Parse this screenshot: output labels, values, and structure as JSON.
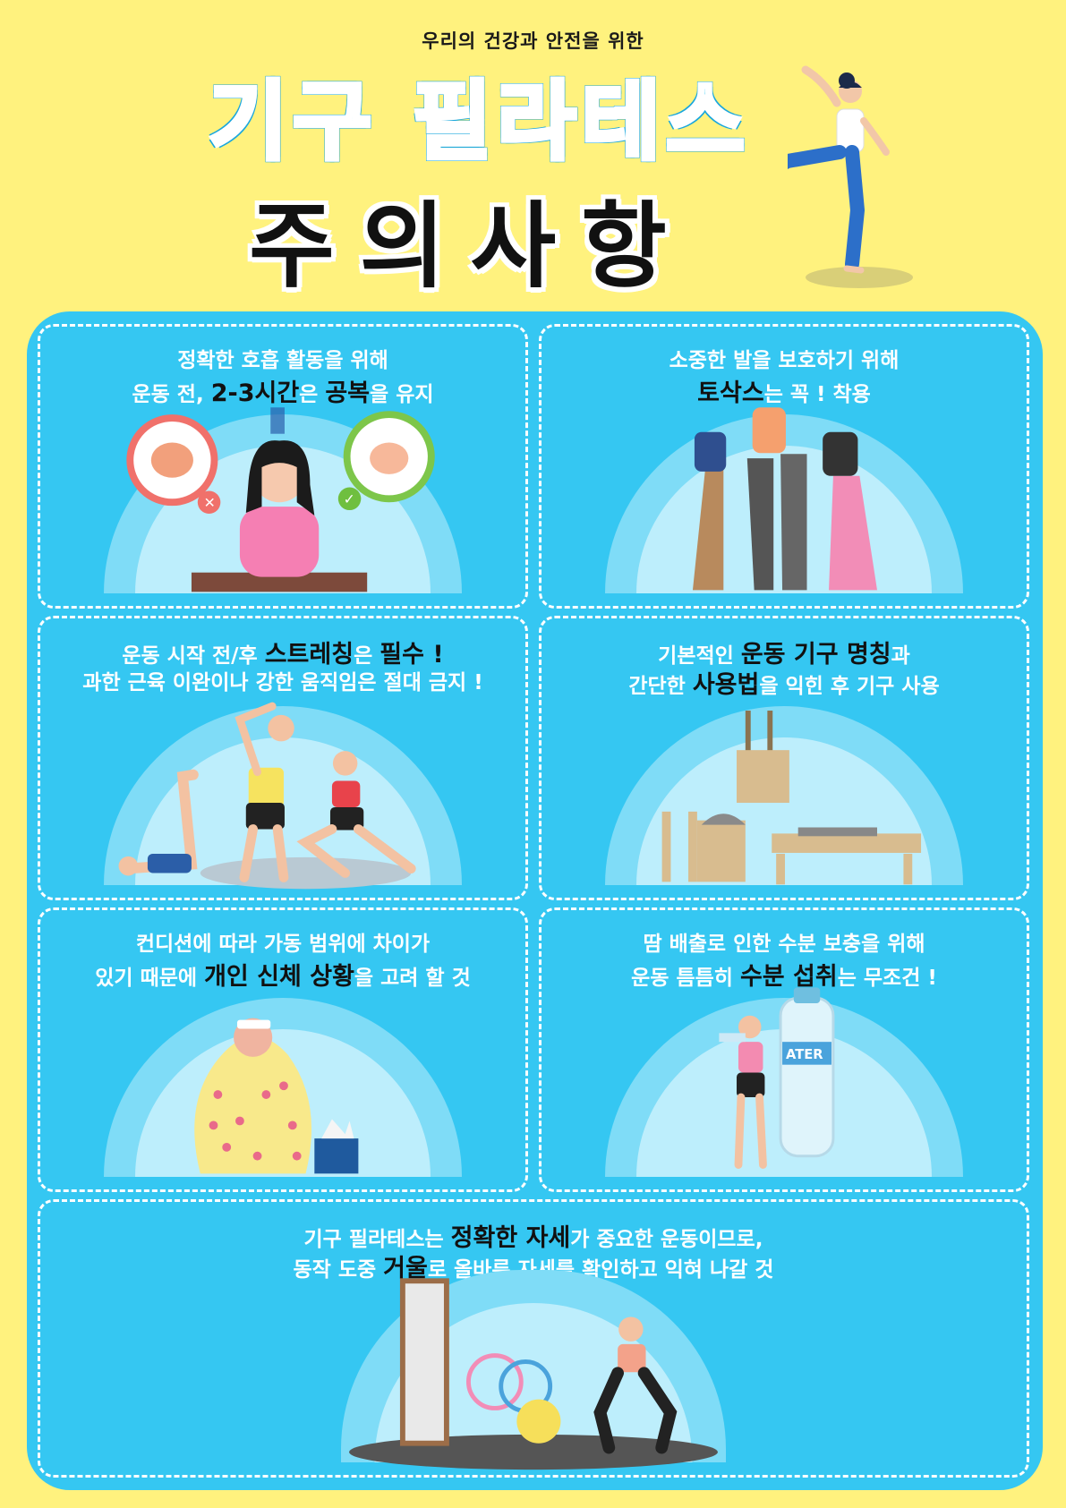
{
  "header": {
    "subtitle": "우리의 건강과 안전을 위한",
    "title_main": "기구 필라테스",
    "title_sub": "주의사항"
  },
  "cells": [
    {
      "line1": [
        {
          "t": "정확한 호흡 활동을 위해",
          "hl": false
        }
      ],
      "line2": [
        {
          "t": "운동 전, ",
          "hl": false
        },
        {
          "t": "2-3시간",
          "hl": true
        },
        {
          "t": "은 ",
          "hl": false
        },
        {
          "t": "공복",
          "hl": true
        },
        {
          "t": "을 유지",
          "hl": false
        }
      ],
      "illustration": "woman-thinking-stomach-icon"
    },
    {
      "line1": [
        {
          "t": "소중한 발을 보호하기 위해",
          "hl": false
        }
      ],
      "line2": [
        {
          "t": "토삭스",
          "hl": true
        },
        {
          "t": "는 꼭 ! 착용",
          "hl": false
        }
      ],
      "illustration": "toe-socks-legs-icon"
    },
    {
      "line1": [
        {
          "t": "운동 시작 전/후 ",
          "hl": false
        },
        {
          "t": "스트레칭",
          "hl": true
        },
        {
          "t": "은 ",
          "hl": false
        },
        {
          "t": "필수 !",
          "hl": true
        }
      ],
      "line2": [
        {
          "t": "과한 근육 이완이나 강한 움직임은 절대 금지 !",
          "hl": false
        }
      ],
      "illustration": "people-stretching-icon"
    },
    {
      "line1": [
        {
          "t": "기본적인 ",
          "hl": false
        },
        {
          "t": "운동 기구 명칭",
          "hl": true
        },
        {
          "t": "과",
          "hl": false
        }
      ],
      "line2": [
        {
          "t": "간단한 ",
          "hl": false
        },
        {
          "t": "사용법",
          "hl": true
        },
        {
          "t": "을 익힌 후 기구 사용",
          "hl": false
        }
      ],
      "illustration": "pilates-equipment-icon"
    },
    {
      "line1": [
        {
          "t": "컨디션에 따라 가동 범위에 차이가",
          "hl": false
        }
      ],
      "line2": [
        {
          "t": "있기 때문에 ",
          "hl": false
        },
        {
          "t": "개인 신체 상황",
          "hl": true
        },
        {
          "t": "을 고려 할 것",
          "hl": false
        }
      ],
      "illustration": "sick-woman-blanket-icon"
    },
    {
      "line1": [
        {
          "t": "땀 배출로 인한 수분 보충을 위해",
          "hl": false
        }
      ],
      "line2": [
        {
          "t": "운동 틈틈히 ",
          "hl": false
        },
        {
          "t": "수분 섭취",
          "hl": true
        },
        {
          "t": "는 무조건 !",
          "hl": false
        }
      ],
      "illustration": "woman-drinking-water-icon"
    },
    {
      "line1": [
        {
          "t": "기구 필라테스는 ",
          "hl": false
        },
        {
          "t": "정확한 자세",
          "hl": true
        },
        {
          "t": "가 중요한 운동이므로,",
          "hl": false
        }
      ],
      "line2": [
        {
          "t": "동작 도중 ",
          "hl": false
        },
        {
          "t": "거울",
          "hl": true
        },
        {
          "t": "로 올바른 자세를 확인하고 익혀 나갈 것",
          "hl": false
        }
      ],
      "illustration": "woman-squat-mirror-icon"
    }
  ],
  "water_label": "ATER"
}
